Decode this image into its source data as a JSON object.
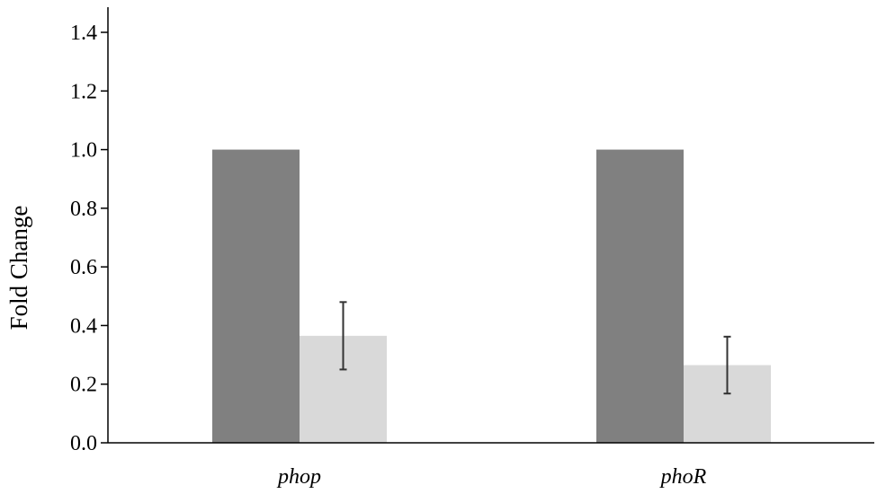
{
  "chart_data": {
    "type": "bar",
    "categories": [
      "phop",
      "phoR"
    ],
    "series": [
      {
        "values": [
          1.0,
          1.0
        ],
        "errors": [
          null,
          null
        ],
        "color": "#808080"
      },
      {
        "values": [
          0.365,
          0.265
        ],
        "errors": [
          0.115,
          0.097
        ],
        "color": "#d9d9d9"
      }
    ],
    "ylabel": "Fold Change",
    "xlabel": "",
    "title": "",
    "ylim": [
      0,
      1.4
    ],
    "yticks": [
      "0.0",
      "0.2",
      "0.4",
      "0.6",
      "0.8",
      "1.0",
      "1.2",
      "1.4"
    ],
    "grid": false,
    "legend": "none"
  }
}
